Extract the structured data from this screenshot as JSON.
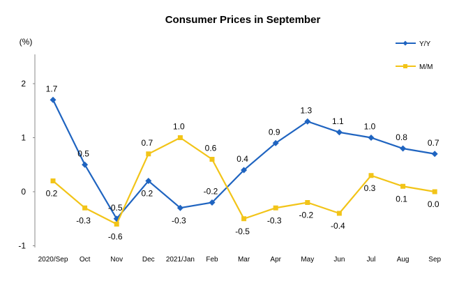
{
  "chart_data": {
    "type": "line",
    "title": "Consumer Prices in September",
    "ylabel": "(%)",
    "xlabel": "",
    "ylim": [
      -1,
      2
    ],
    "yticks": [
      "-1",
      "0",
      "1",
      "2"
    ],
    "categories": [
      "2020/Sep",
      "Oct",
      "Nov",
      "Dec",
      "2021/Jan",
      "Feb",
      "Mar",
      "Apr",
      "May",
      "Jun",
      "Jul",
      "Aug",
      "Sep"
    ],
    "series": [
      {
        "name": "Y/Y",
        "color": "#1f64c0",
        "marker": "diamond",
        "values": [
          1.7,
          0.5,
          -0.5,
          0.2,
          -0.3,
          -0.2,
          0.4,
          0.9,
          1.3,
          1.1,
          1.0,
          0.8,
          0.7
        ],
        "labels": [
          "1.7",
          "0.5",
          "-0.5",
          "0.2",
          "-0.3",
          "-0.2",
          "0.4",
          "0.9",
          "1.3",
          "1.1",
          "1.0",
          "0.8",
          "0.7"
        ]
      },
      {
        "name": "M/M",
        "color": "#f2c418",
        "marker": "square",
        "values": [
          0.2,
          -0.3,
          -0.6,
          0.7,
          1.0,
          0.6,
          -0.5,
          -0.3,
          -0.2,
          -0.4,
          0.3,
          0.1,
          0.0
        ],
        "labels": [
          "0.2",
          "-0.3",
          "-0.6",
          "0.7",
          "1.0",
          "0.6",
          "-0.5",
          "-0.3",
          "-0.2",
          "-0.4",
          "0.3",
          "0.1",
          "0.0"
        ]
      }
    ],
    "grid": false,
    "legend": "top-right"
  }
}
